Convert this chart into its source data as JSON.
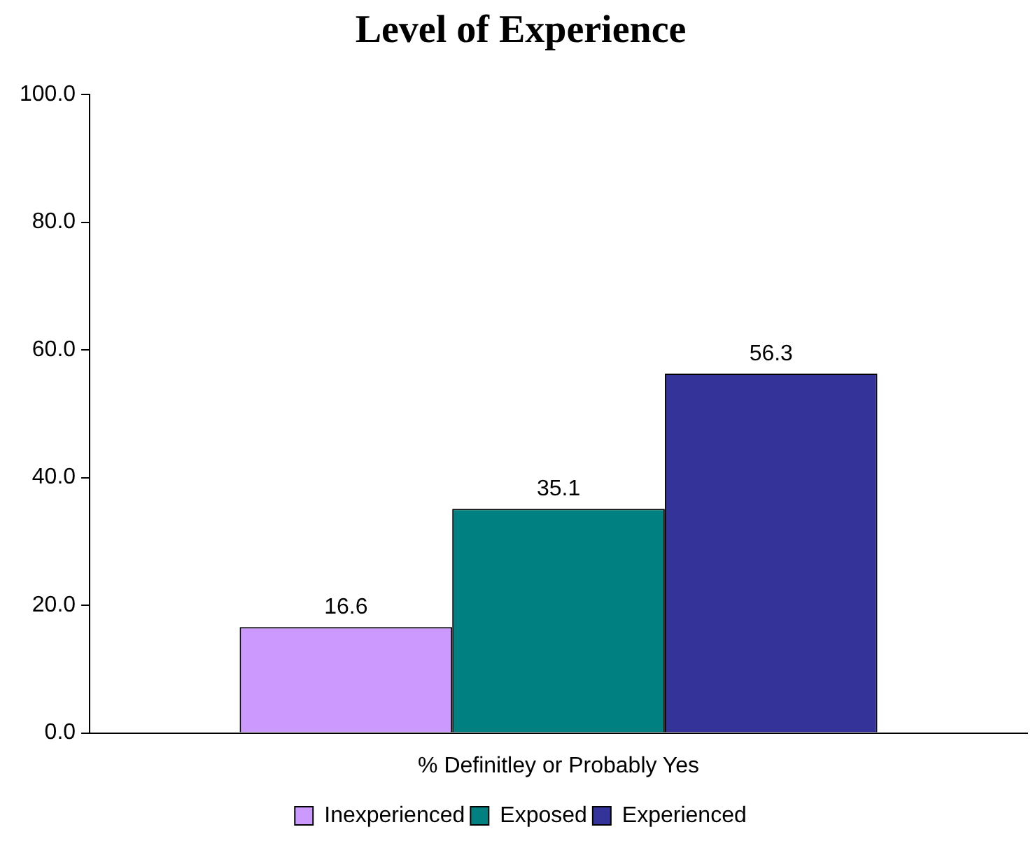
{
  "chart_data": {
    "type": "bar",
    "title": "Level of Experience",
    "categories": [
      "% Definitley or Probably Yes"
    ],
    "series": [
      {
        "name": "Inexperienced",
        "color": "#cc99ff",
        "values": [
          16.6
        ]
      },
      {
        "name": "Exposed",
        "color": "#008080",
        "values": [
          35.1
        ]
      },
      {
        "name": "Experienced",
        "color": "#333399",
        "values": [
          56.3
        ]
      }
    ],
    "ylim": [
      0,
      100
    ],
    "yticks": [
      {
        "value": 0,
        "label": "0.0"
      },
      {
        "value": 20,
        "label": "20.0"
      },
      {
        "value": 40,
        "label": "40.0"
      },
      {
        "value": 60,
        "label": "60.0"
      },
      {
        "value": 80,
        "label": "80.0"
      },
      {
        "value": 100,
        "label": "100.0"
      }
    ],
    "grid": false,
    "legend": "bottom",
    "data_labels": true
  }
}
